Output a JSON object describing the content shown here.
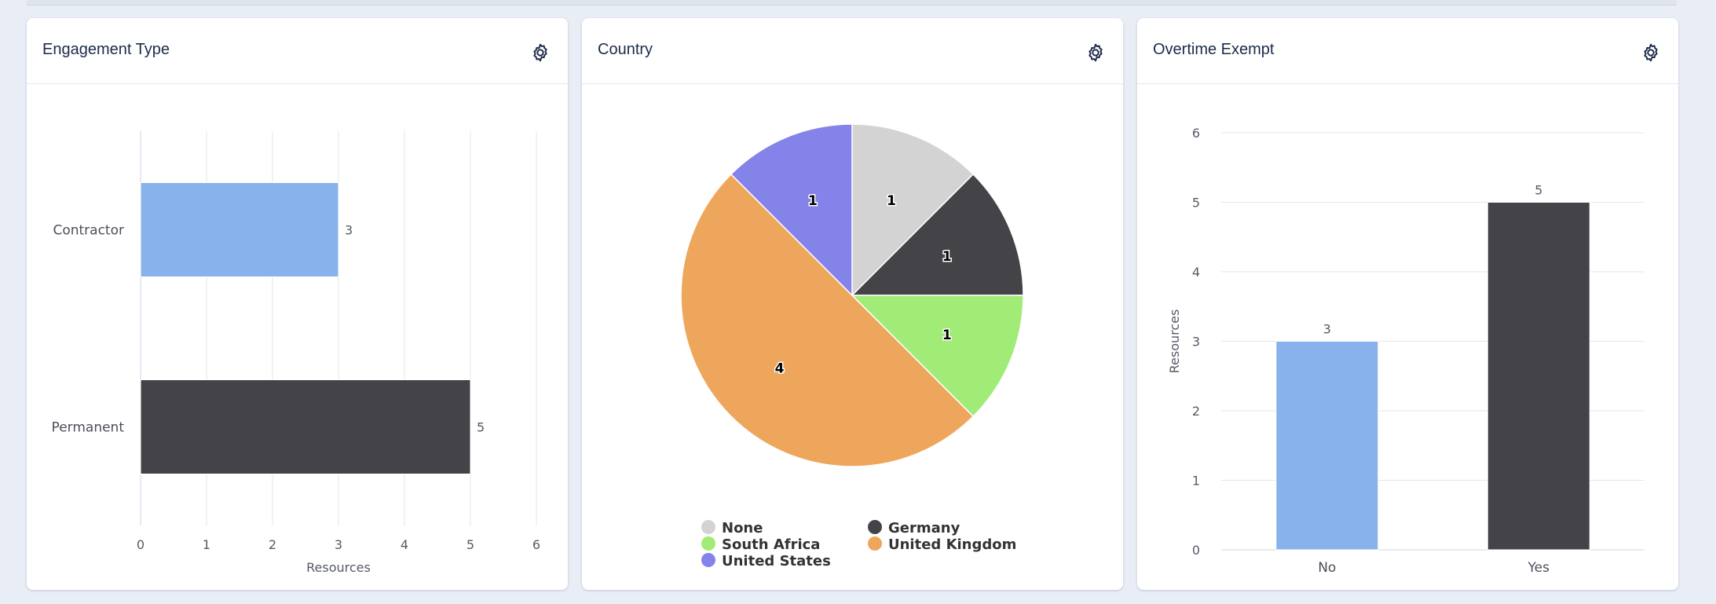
{
  "page": {
    "background": "#e9edf5"
  },
  "panels": [
    {
      "title": "Engagement Type",
      "settings_icon": "gear-icon",
      "chart_data": {
        "type": "bar",
        "orientation": "horizontal",
        "categories": [
          "Contractor",
          "Permanent"
        ],
        "values": [
          3,
          5
        ],
        "colors": [
          "#88b2ec",
          "#434348"
        ],
        "xlabel": "Resources",
        "xlim": [
          0,
          6
        ],
        "xticks": [
          "0",
          "1",
          "2",
          "3",
          "4",
          "5",
          "6"
        ],
        "data_labels": [
          "3",
          "5"
        ],
        "grid": true
      }
    },
    {
      "title": "Country",
      "settings_icon": "gear-icon",
      "chart_data": {
        "type": "pie",
        "labels": [
          "None",
          "Germany",
          "South Africa",
          "United Kingdom",
          "United States"
        ],
        "values": [
          1,
          1,
          1,
          4,
          1
        ],
        "data_labels": [
          "1",
          "1",
          "1",
          "4",
          "1"
        ],
        "colors": [
          "#d3d3d3",
          "#434348",
          "#a1ec77",
          "#eea65c",
          "#8383e9"
        ],
        "legend": [
          "None",
          "Germany",
          "South Africa",
          "United Kingdom",
          "United States"
        ],
        "legend_placement": "bottom"
      }
    },
    {
      "title": "Overtime Exempt",
      "settings_icon": "gear-icon",
      "chart_data": {
        "type": "bar",
        "orientation": "vertical",
        "categories": [
          "No",
          "Yes"
        ],
        "values": [
          3,
          5
        ],
        "colors": [
          "#88b2ec",
          "#434348"
        ],
        "ylabel": "Resources",
        "ylim": [
          0,
          6
        ],
        "yticks": [
          "0",
          "1",
          "2",
          "3",
          "4",
          "5",
          "6"
        ],
        "data_labels": [
          "3",
          "5"
        ],
        "grid": true
      }
    }
  ]
}
